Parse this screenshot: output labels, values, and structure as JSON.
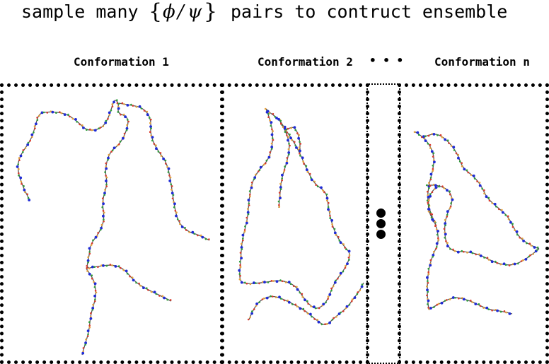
{
  "heading": {
    "text_before": "sample many",
    "math_open": "{",
    "math_phi": "ϕ",
    "math_slash": "/",
    "math_psi": "ψ",
    "math_close": "}",
    "text_after": "pairs to contruct ensemble"
  },
  "panels": [
    {
      "label": "Conformation 1"
    },
    {
      "label": "Conformation 2"
    },
    {
      "label": "Conformation n"
    }
  ],
  "ellipsis": "• • •",
  "colors": {
    "backbone": "#555555",
    "atom_blue": "#1f2bd6",
    "atom_green": "#2e9e3a",
    "atom_red": "#d93a2b",
    "atom_orange": "#e8a13a",
    "border": "#000000"
  }
}
